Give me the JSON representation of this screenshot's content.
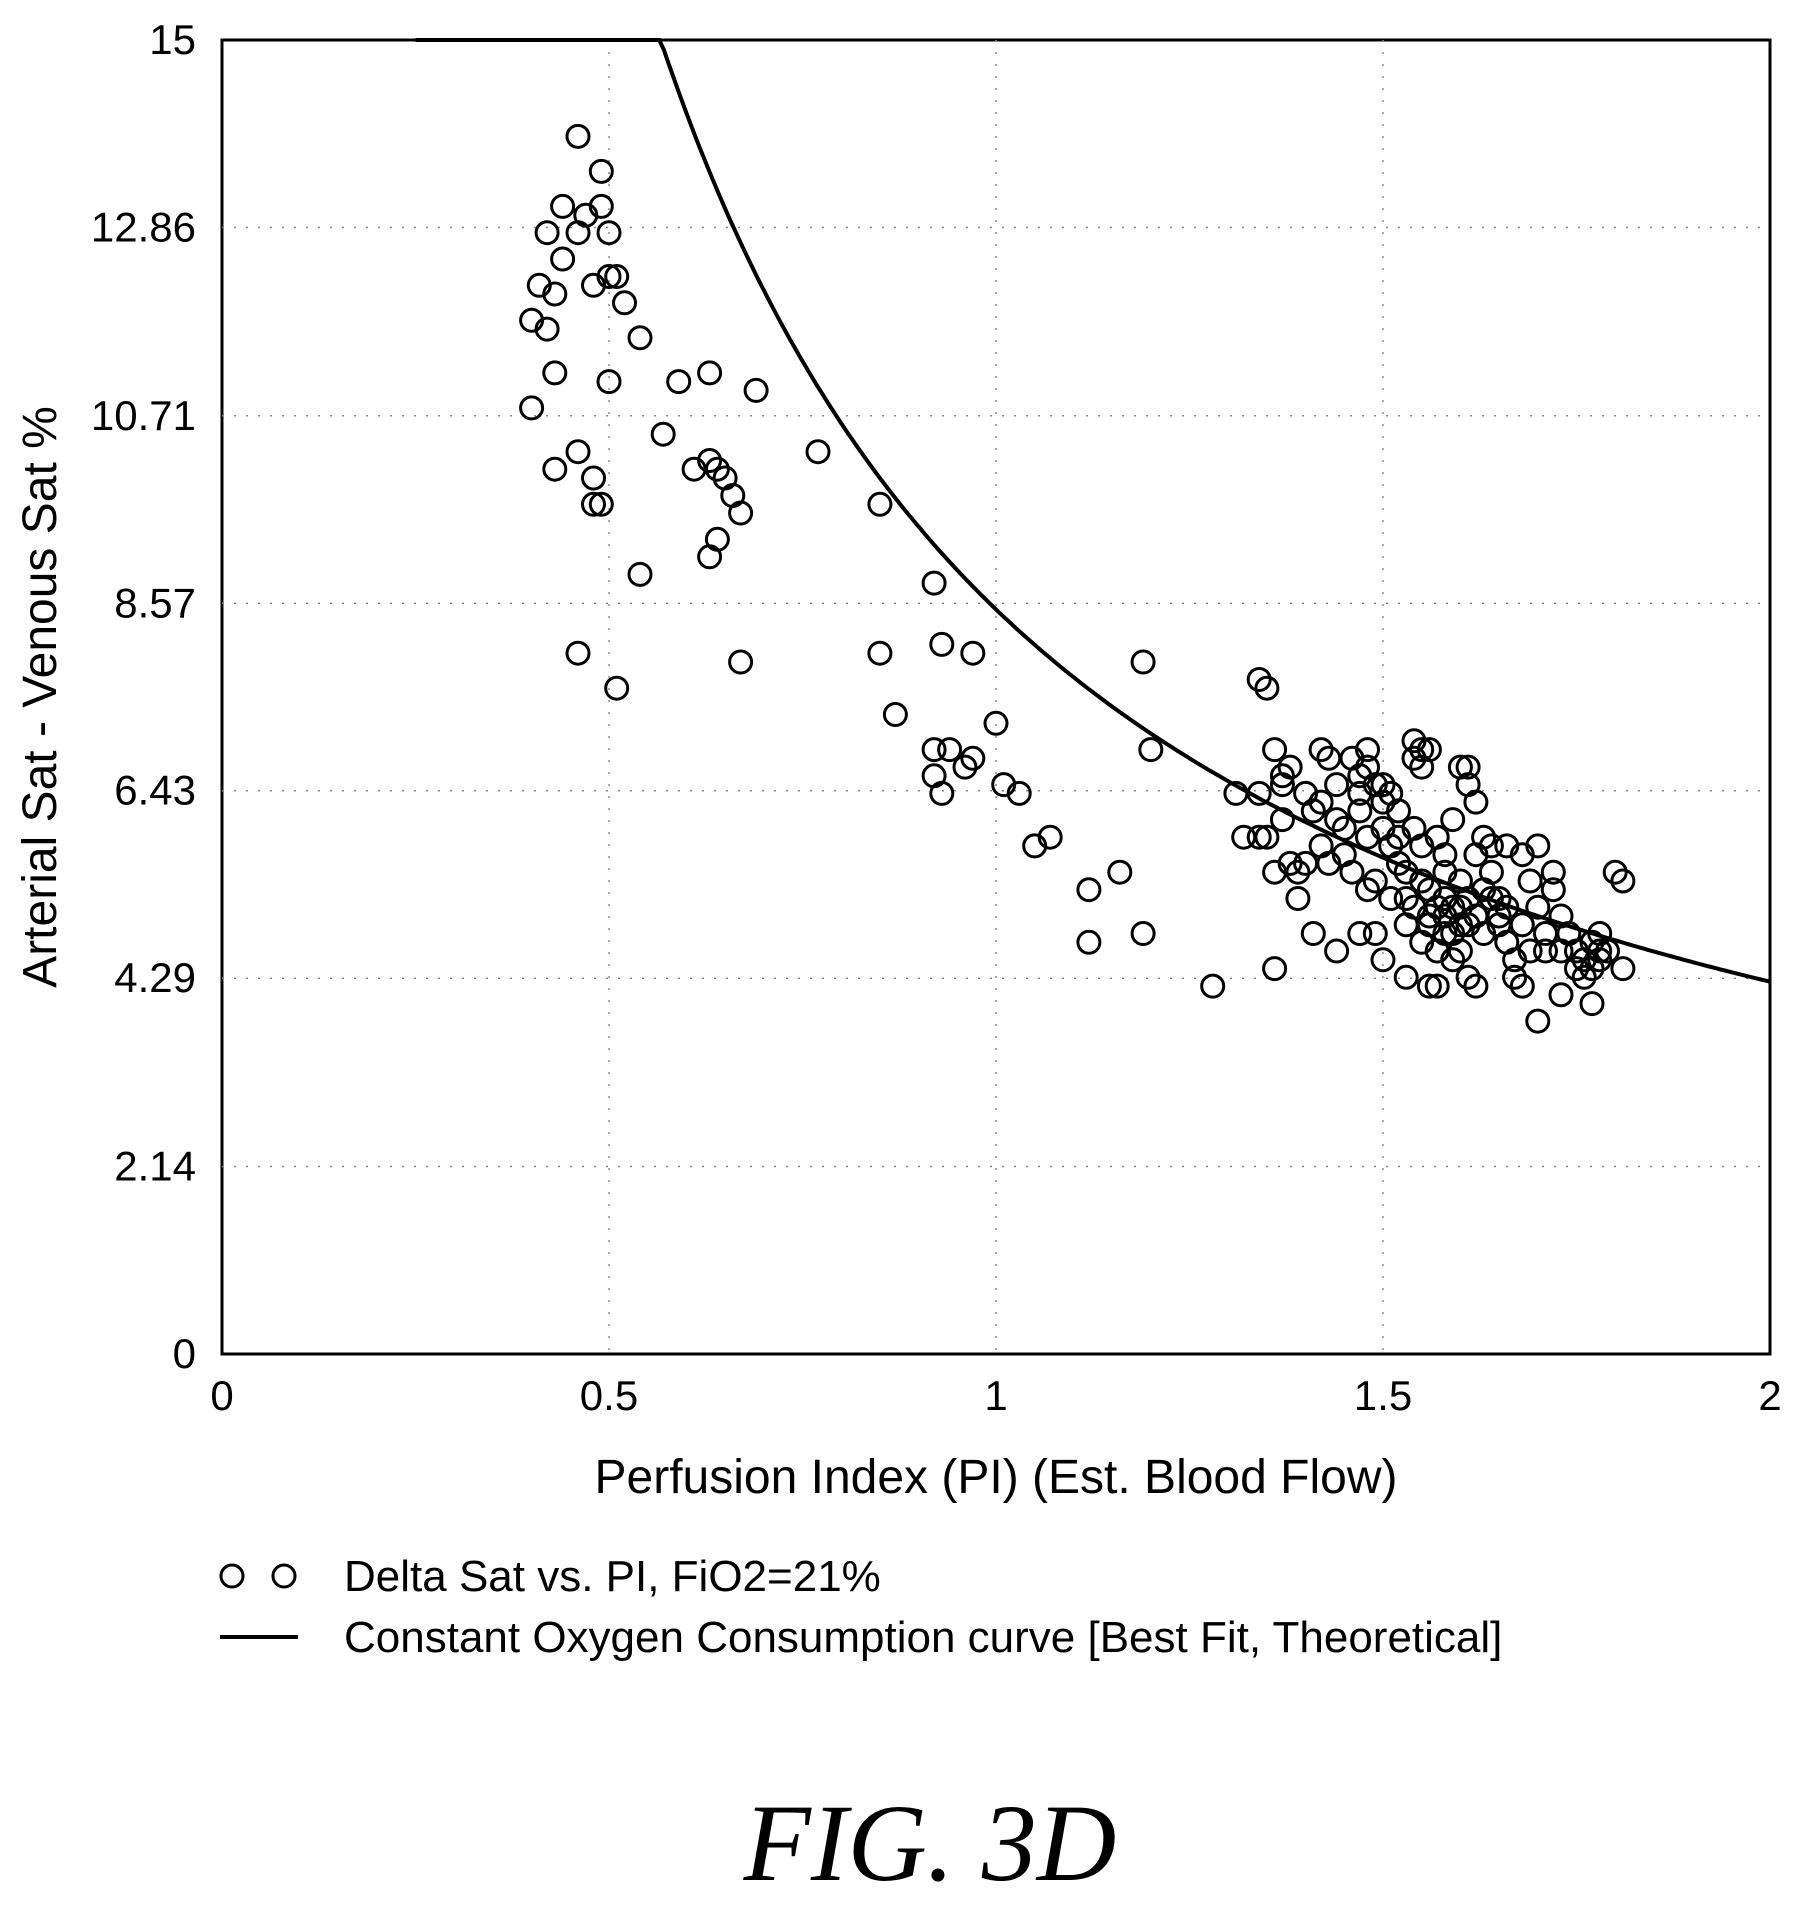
{
  "chart_data": {
    "type": "scatter",
    "xlabel": "Perfusion Index (PI) (Est. Blood Flow)",
    "ylabel": "Arterial Sat - Venous Sat %",
    "xlim": [
      0,
      2
    ],
    "ylim": [
      0,
      15
    ],
    "x_ticks": [
      "0",
      "0.5",
      "1",
      "1.5",
      "2"
    ],
    "y_ticks": [
      "0",
      "2.14",
      "4.29",
      "6.43",
      "8.57",
      "10.71",
      "12.86",
      "15"
    ],
    "grid": "dotted",
    "legend_position": "bottom-left, below plot",
    "marker_color": "#000000",
    "series": [
      {
        "name": "Delta Sat vs. PI, FiO2=21%",
        "type": "scatter",
        "marker": "open-circle",
        "points": [
          [
            0.46,
            13.9
          ],
          [
            0.49,
            13.5
          ],
          [
            0.44,
            13.1
          ],
          [
            0.47,
            13.0
          ],
          [
            0.49,
            13.1
          ],
          [
            0.42,
            12.8
          ],
          [
            0.46,
            12.8
          ],
          [
            0.5,
            12.8
          ],
          [
            0.44,
            12.5
          ],
          [
            0.41,
            12.2
          ],
          [
            0.48,
            12.2
          ],
          [
            0.5,
            12.3
          ],
          [
            0.51,
            12.3
          ],
          [
            0.43,
            12.1
          ],
          [
            0.52,
            12.0
          ],
          [
            0.4,
            11.8
          ],
          [
            0.42,
            11.7
          ],
          [
            0.54,
            11.6
          ],
          [
            0.43,
            11.2
          ],
          [
            0.5,
            11.1
          ],
          [
            0.4,
            10.8
          ],
          [
            0.59,
            11.1
          ],
          [
            0.63,
            11.2
          ],
          [
            0.69,
            11.0
          ],
          [
            0.57,
            10.5
          ],
          [
            0.46,
            10.3
          ],
          [
            0.43,
            10.1
          ],
          [
            0.48,
            10.0
          ],
          [
            0.61,
            10.1
          ],
          [
            0.63,
            10.2
          ],
          [
            0.64,
            10.1
          ],
          [
            0.65,
            10.0
          ],
          [
            0.77,
            10.3
          ],
          [
            0.66,
            9.8
          ],
          [
            0.48,
            9.7
          ],
          [
            0.49,
            9.7
          ],
          [
            0.67,
            9.6
          ],
          [
            0.85,
            9.7
          ],
          [
            0.64,
            9.3
          ],
          [
            0.63,
            9.1
          ],
          [
            0.54,
            8.9
          ],
          [
            0.92,
            8.8
          ],
          [
            0.46,
            8.0
          ],
          [
            0.51,
            7.6
          ],
          [
            0.67,
            7.9
          ],
          [
            0.85,
            8.0
          ],
          [
            0.93,
            8.1
          ],
          [
            0.97,
            8.0
          ],
          [
            0.87,
            7.3
          ],
          [
            1.0,
            7.2
          ],
          [
            1.19,
            7.9
          ],
          [
            0.92,
            6.9
          ],
          [
            0.94,
            6.9
          ],
          [
            0.96,
            6.7
          ],
          [
            0.97,
            6.8
          ],
          [
            0.92,
            6.6
          ],
          [
            0.93,
            6.4
          ],
          [
            1.2,
            6.9
          ],
          [
            1.01,
            6.5
          ],
          [
            1.03,
            6.4
          ],
          [
            1.05,
            5.8
          ],
          [
            1.07,
            5.9
          ],
          [
            1.12,
            5.3
          ],
          [
            1.12,
            4.7
          ],
          [
            1.16,
            5.5
          ],
          [
            1.19,
            4.8
          ],
          [
            1.28,
            4.2
          ],
          [
            1.31,
            6.4
          ],
          [
            1.34,
            6.4
          ],
          [
            1.34,
            7.7
          ],
          [
            1.35,
            7.6
          ],
          [
            1.32,
            5.9
          ],
          [
            1.34,
            5.9
          ],
          [
            1.35,
            5.9
          ],
          [
            1.36,
            5.5
          ],
          [
            1.36,
            4.4
          ],
          [
            1.36,
            6.9
          ],
          [
            1.37,
            6.5
          ],
          [
            1.37,
            6.6
          ],
          [
            1.38,
            6.7
          ],
          [
            1.37,
            6.1
          ],
          [
            1.38,
            5.6
          ],
          [
            1.39,
            5.5
          ],
          [
            1.4,
            5.6
          ],
          [
            1.39,
            5.2
          ],
          [
            1.4,
            6.4
          ],
          [
            1.41,
            6.2
          ],
          [
            1.42,
            6.3
          ],
          [
            1.42,
            5.8
          ],
          [
            1.43,
            5.6
          ],
          [
            1.41,
            4.8
          ],
          [
            1.42,
            6.9
          ],
          [
            1.43,
            6.8
          ],
          [
            1.44,
            6.5
          ],
          [
            1.44,
            6.1
          ],
          [
            1.45,
            6.0
          ],
          [
            1.45,
            5.7
          ],
          [
            1.46,
            5.5
          ],
          [
            1.44,
            4.6
          ],
          [
            1.46,
            6.8
          ],
          [
            1.47,
            6.6
          ],
          [
            1.47,
            6.4
          ],
          [
            1.47,
            6.2
          ],
          [
            1.48,
            6.9
          ],
          [
            1.48,
            6.7
          ],
          [
            1.48,
            5.9
          ],
          [
            1.48,
            5.3
          ],
          [
            1.49,
            5.4
          ],
          [
            1.49,
            6.5
          ],
          [
            1.5,
            6.5
          ],
          [
            1.5,
            6.3
          ],
          [
            1.5,
            6.0
          ],
          [
            1.51,
            5.8
          ],
          [
            1.51,
            5.2
          ],
          [
            1.47,
            4.8
          ],
          [
            1.49,
            4.8
          ],
          [
            1.5,
            4.5
          ],
          [
            1.51,
            6.4
          ],
          [
            1.52,
            6.2
          ],
          [
            1.52,
            5.9
          ],
          [
            1.52,
            5.6
          ],
          [
            1.53,
            5.5
          ],
          [
            1.53,
            5.2
          ],
          [
            1.53,
            4.9
          ],
          [
            1.53,
            4.3
          ],
          [
            1.54,
            7.0
          ],
          [
            1.54,
            6.8
          ],
          [
            1.55,
            6.9
          ],
          [
            1.55,
            6.7
          ],
          [
            1.56,
            6.9
          ],
          [
            1.54,
            6.0
          ],
          [
            1.55,
            5.8
          ],
          [
            1.55,
            5.4
          ],
          [
            1.56,
            5.3
          ],
          [
            1.56,
            5.0
          ],
          [
            1.55,
            4.7
          ],
          [
            1.56,
            4.2
          ],
          [
            1.57,
            4.2
          ],
          [
            1.57,
            5.9
          ],
          [
            1.58,
            5.7
          ],
          [
            1.58,
            5.5
          ],
          [
            1.58,
            5.2
          ],
          [
            1.58,
            4.8
          ],
          [
            1.59,
            4.5
          ],
          [
            1.59,
            6.1
          ],
          [
            1.6,
            6.7
          ],
          [
            1.61,
            6.7
          ],
          [
            1.61,
            6.5
          ],
          [
            1.62,
            6.3
          ],
          [
            1.6,
            5.4
          ],
          [
            1.6,
            5.1
          ],
          [
            1.61,
            4.9
          ],
          [
            1.61,
            4.3
          ],
          [
            1.62,
            4.2
          ],
          [
            1.62,
            5.7
          ],
          [
            1.63,
            5.9
          ],
          [
            1.64,
            5.8
          ],
          [
            1.64,
            5.5
          ],
          [
            1.64,
            5.2
          ],
          [
            1.65,
            5.0
          ],
          [
            1.65,
            4.9
          ],
          [
            1.66,
            5.8
          ],
          [
            1.66,
            4.7
          ],
          [
            1.67,
            4.5
          ],
          [
            1.67,
            4.3
          ],
          [
            1.68,
            4.2
          ],
          [
            1.68,
            5.7
          ],
          [
            1.69,
            5.4
          ],
          [
            1.7,
            5.8
          ],
          [
            1.7,
            5.1
          ],
          [
            1.71,
            4.8
          ],
          [
            1.71,
            4.6
          ],
          [
            1.72,
            5.3
          ],
          [
            1.72,
            5.5
          ],
          [
            1.73,
            5.0
          ],
          [
            1.73,
            4.6
          ],
          [
            1.74,
            4.8
          ],
          [
            1.75,
            4.6
          ],
          [
            1.76,
            4.5
          ],
          [
            1.77,
            4.7
          ],
          [
            1.78,
            4.8
          ],
          [
            1.78,
            4.5
          ],
          [
            1.79,
            4.6
          ],
          [
            1.8,
            5.5
          ],
          [
            1.81,
            5.4
          ],
          [
            1.81,
            4.4
          ],
          [
            1.77,
            4.0
          ],
          [
            1.7,
            3.8
          ],
          [
            1.73,
            4.1
          ],
          [
            1.58,
            5.0
          ],
          [
            1.59,
            5.1
          ],
          [
            1.6,
            4.9
          ],
          [
            1.57,
            5.1
          ],
          [
            1.59,
            4.8
          ],
          [
            1.61,
            5.2
          ],
          [
            1.62,
            5.0
          ],
          [
            1.63,
            5.3
          ],
          [
            1.56,
            4.9
          ],
          [
            1.57,
            4.6
          ],
          [
            1.6,
            4.6
          ],
          [
            1.63,
            4.8
          ],
          [
            1.65,
            5.2
          ],
          [
            1.66,
            5.1
          ],
          [
            1.68,
            4.9
          ],
          [
            1.69,
            4.6
          ],
          [
            1.75,
            4.4
          ],
          [
            1.76,
            4.3
          ],
          [
            1.77,
            4.4
          ],
          [
            1.78,
            4.6
          ],
          [
            1.54,
            5.1
          ]
        ]
      },
      {
        "name": "Constant Oxygen Consumption curve [Best Fit, Theoretical]",
        "type": "line",
        "formula": "y = 8.5 / x",
        "x_start": 0.25,
        "x_end": 2.0
      }
    ]
  },
  "legend": {
    "scatter_label": "Delta Sat vs. PI, FiO2=21%",
    "line_label": "Constant Oxygen Consumption curve [Best Fit, Theoretical]"
  },
  "figure_label": "FIG. 3D"
}
